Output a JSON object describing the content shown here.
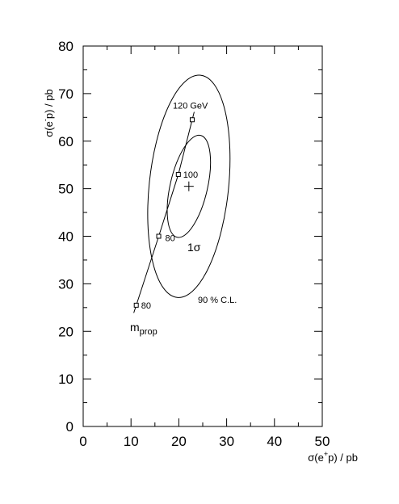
{
  "chart_data": {
    "type": "scatter",
    "title": "",
    "xlabel": {
      "main": "σ(e",
      "sup": "+",
      "tail": "p) / pb"
    },
    "ylabel": {
      "main": "σ(e",
      "sup": "-",
      "tail": "p) / pb"
    },
    "xlim": [
      0,
      50
    ],
    "ylim": [
      0,
      80
    ],
    "x_ticks": [
      0,
      10,
      20,
      30,
      40,
      50
    ],
    "x_tick_labels": [
      "0",
      "10",
      "20",
      "30",
      "40",
      "50"
    ],
    "y_ticks": [
      0,
      10,
      20,
      30,
      40,
      50,
      60,
      70,
      80
    ],
    "y_tick_labels": [
      "0",
      "10",
      "20",
      "30",
      "40",
      "50",
      "60",
      "70",
      "80"
    ],
    "grid": false,
    "measurement": {
      "x": 22.1,
      "y": 50.5
    },
    "contours": [
      {
        "label": "1σ",
        "center": [
          22.1,
          50.5
        ],
        "semi_x": 3.9,
        "semi_y": 11.0,
        "tilt_deg": 13
      },
      {
        "label": "90 % C.L.",
        "center": [
          22.1,
          50.5
        ],
        "semi_x": 8.3,
        "semi_y": 23.5,
        "tilt_deg": 6
      }
    ],
    "mass_curve": {
      "label": "m",
      "label_sub": "prop",
      "points": [
        {
          "x": 11.1,
          "y": 25.5,
          "label": "80"
        },
        {
          "x": 15.8,
          "y": 40.0,
          "label": "80"
        },
        {
          "x": 19.9,
          "y": 53.0,
          "label": "100"
        },
        {
          "x": 22.8,
          "y": 64.5,
          "label": "120 GeV"
        }
      ]
    },
    "annotations": {
      "sigma1": "1σ",
      "cl90": "90 % C.L."
    }
  }
}
